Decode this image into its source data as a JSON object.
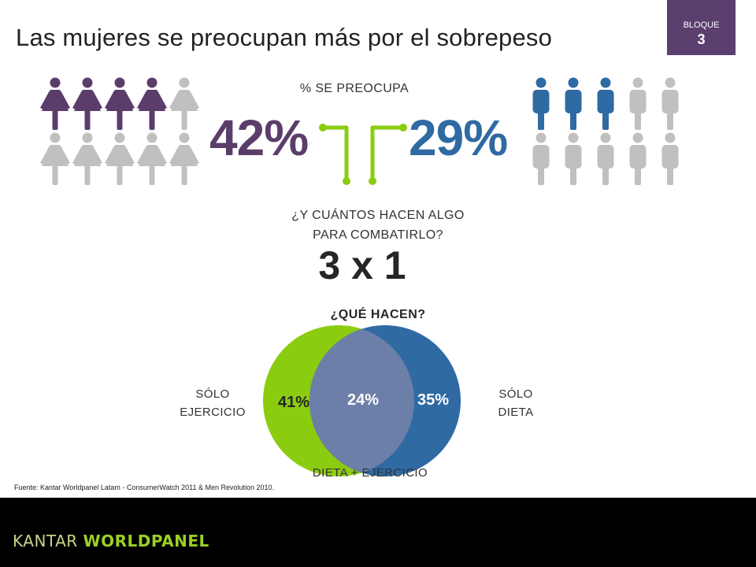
{
  "header": {
    "title": "Las mujeres se preocupan más por el sobrepeso",
    "badge_label": "BLOQUE",
    "badge_number": "3"
  },
  "colors": {
    "women": "#5b3d6b",
    "men": "#2f6aa3",
    "grey": "#c0c0c0",
    "green": "#8ccc10",
    "badge": "#5b3f6f"
  },
  "icons": {
    "women": "woman-figure-icon",
    "men": "man-figure-icon"
  },
  "concern": {
    "label": "% SE PREOCUPA",
    "women_pct": "42%",
    "men_pct": "29%"
  },
  "action": {
    "question_line1": "¿Y CUÁNTOS HACEN ALGO",
    "question_line2": "PARA COMBATIRLO?",
    "ratio": "3 x 1"
  },
  "chart_data": [
    {
      "type": "pictograph",
      "series": [
        {
          "value": 42,
          "highlighted_icons": 4,
          "total_icons": 10
        },
        {
          "value": 29,
          "highlighted_icons": 3,
          "total_icons": 10
        }
      ]
    },
    {
      "type": "venn",
      "title": "¿QUÉ HACEN?",
      "sets": [
        {
          "label_line1": "SÓLO",
          "label_line2": "EJERCICIO",
          "value": 41,
          "value_label": "41%"
        },
        {
          "label_line1": "SÓLO",
          "label_line2": "DIETA",
          "value": 35,
          "value_label": "35%"
        }
      ],
      "intersection": {
        "label": "DIETA + EJERCICIO",
        "value": 24,
        "value_label": "24%"
      }
    }
  ],
  "source": "Fuente: Kantar Worldpanel Latam - ConsumerWatch 2011 & Men Revolution 2010.",
  "footer": {
    "brand_part1": "KANTAR ",
    "brand_part2": "WORLDPANEL"
  }
}
